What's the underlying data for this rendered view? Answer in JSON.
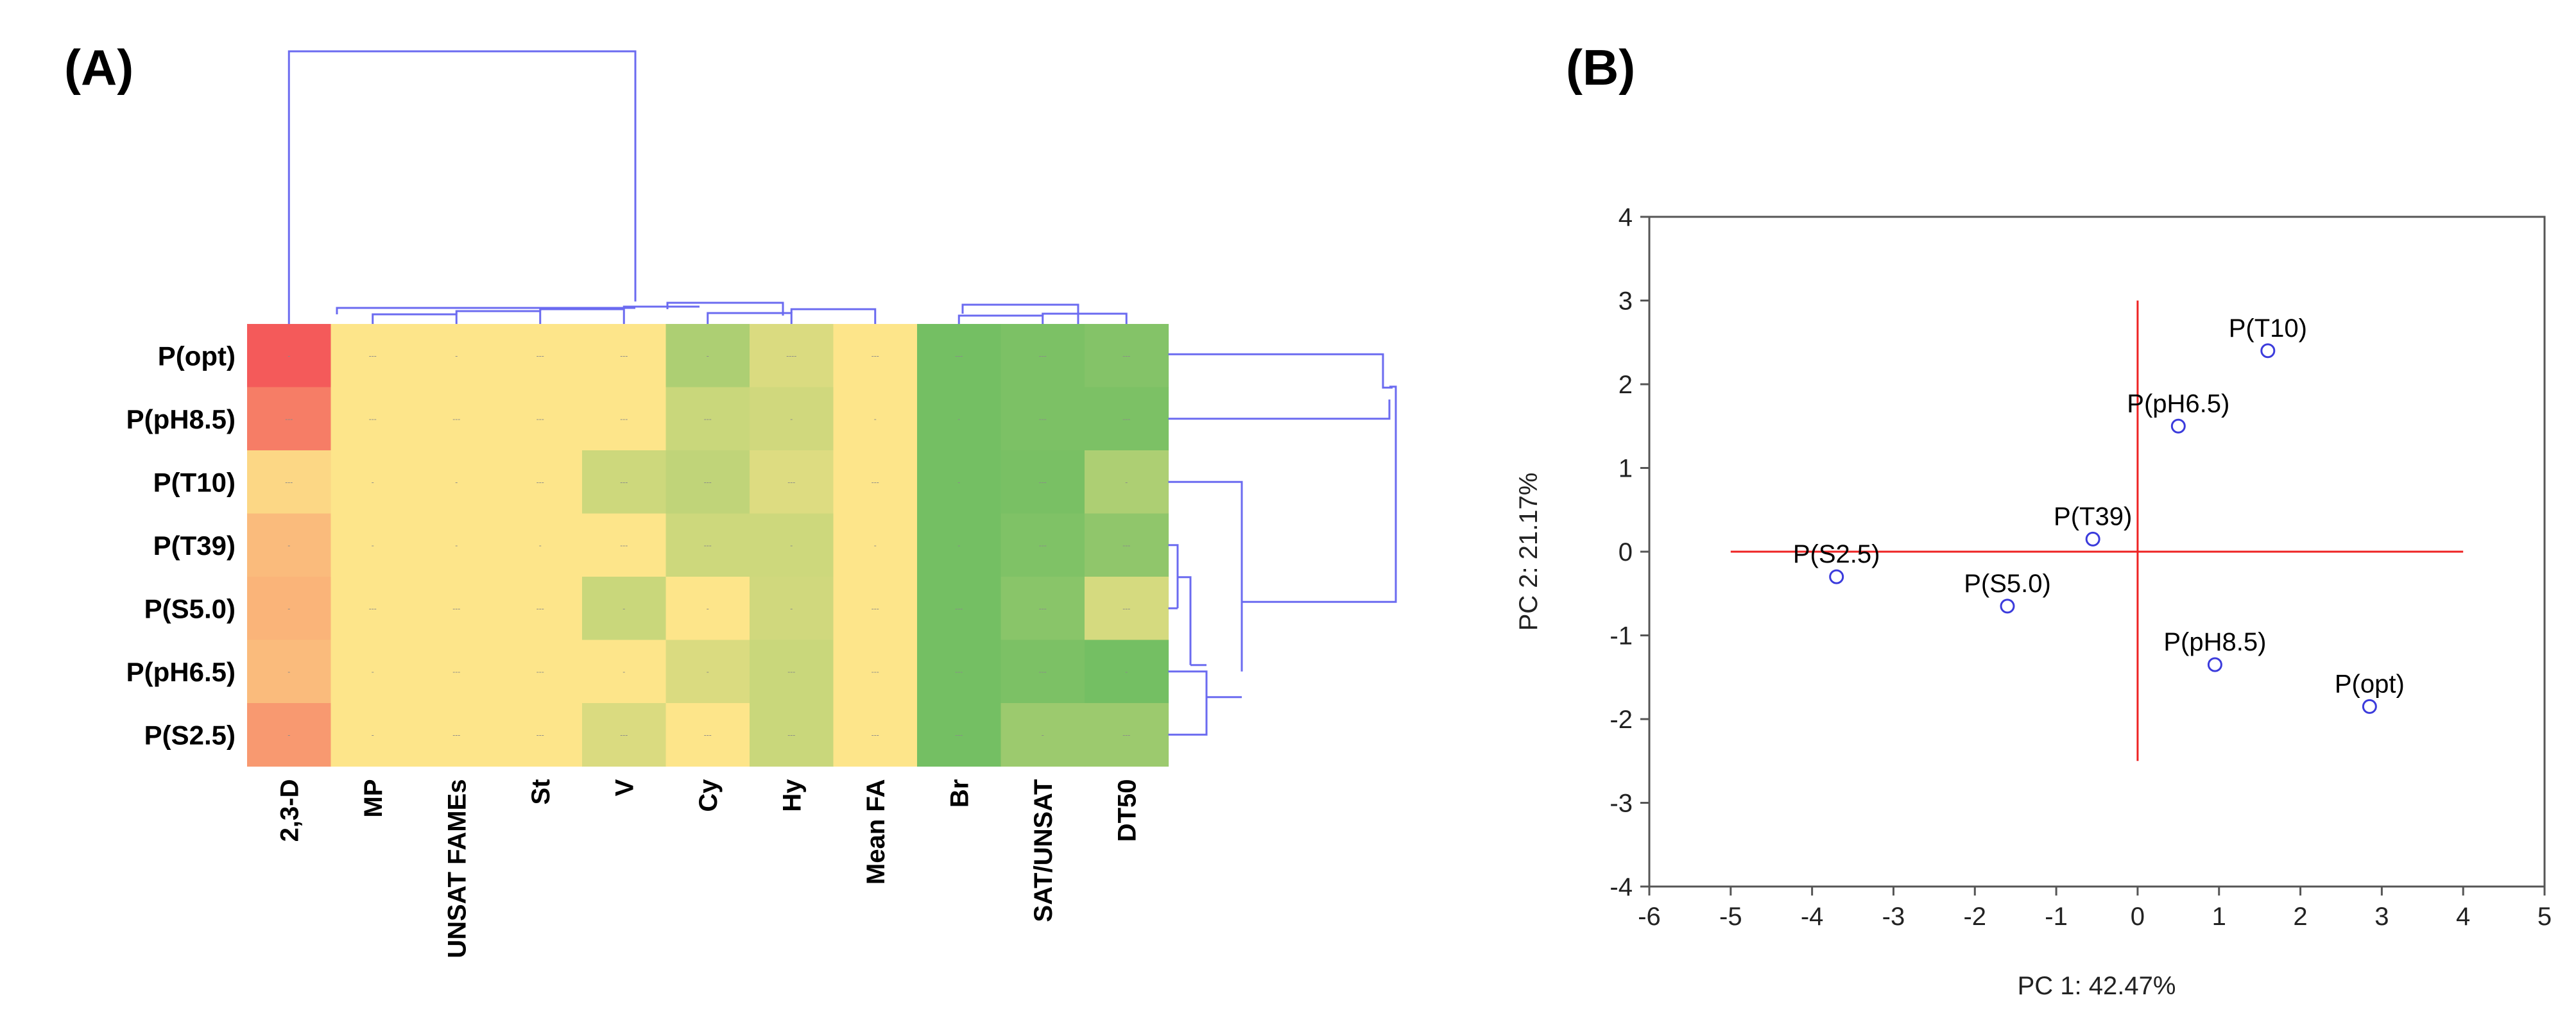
{
  "chart_data": [
    {
      "type": "heatmap",
      "panel_label": "(A)",
      "rows": [
        "P(opt)",
        "P(pH8.5)",
        "P(T10)",
        "P(T39)",
        "P(S5.0)",
        "P(pH6.5)",
        "P(S2.5)"
      ],
      "columns": [
        "2,3-D",
        "MP",
        "UNSAT FAMEs",
        "St",
        "V",
        "Cy",
        "Hy",
        "Mean FA",
        "Br",
        "SAT/UNSAT",
        "DT50"
      ],
      "color_scale": {
        "low": "#5cb85c",
        "mid": "#fde58a",
        "high": "#f45a5a",
        "range": [
          -1,
          1
        ]
      },
      "values": [
        [
          1.0,
          0.0,
          0.0,
          0.0,
          0.0,
          -0.5,
          -0.22,
          0.0,
          -0.85,
          -0.8,
          -0.75
        ],
        [
          0.75,
          0.0,
          0.0,
          0.0,
          0.0,
          -0.32,
          -0.28,
          0.0,
          -0.85,
          -0.8,
          -0.8
        ],
        [
          0.1,
          0.0,
          0.0,
          0.0,
          -0.3,
          -0.38,
          -0.2,
          0.0,
          -0.85,
          -0.82,
          -0.5
        ],
        [
          0.3,
          0.0,
          0.0,
          0.0,
          0.0,
          -0.3,
          -0.3,
          0.0,
          -0.85,
          -0.78,
          -0.68
        ],
        [
          0.35,
          0.0,
          0.0,
          0.0,
          -0.32,
          0.0,
          -0.28,
          0.0,
          -0.85,
          -0.72,
          -0.25
        ],
        [
          0.3,
          0.0,
          0.0,
          0.0,
          0.0,
          -0.22,
          -0.32,
          0.0,
          -0.85,
          -0.8,
          -0.85
        ],
        [
          0.55,
          0.0,
          0.0,
          0.0,
          -0.22,
          0.0,
          -0.32,
          0.0,
          -0.85,
          -0.6,
          -0.6
        ]
      ],
      "cell_annotations": [
        [
          "-",
          "---",
          "-",
          "---",
          "---",
          "-",
          "----",
          "---",
          "---",
          "---",
          "---"
        ],
        [
          "---",
          "---",
          "---",
          "---",
          "---",
          "---",
          "-",
          "-",
          "-",
          "---",
          "---"
        ],
        [
          "---",
          "-",
          "-",
          "---",
          "---",
          "---",
          "---",
          "---",
          "-",
          "---",
          "-"
        ],
        [
          "-",
          "-",
          "-",
          "-",
          "---",
          "---",
          "-",
          "-",
          "-",
          "---",
          "---"
        ],
        [
          "-",
          "---",
          "---",
          "---",
          "-",
          "-",
          "-",
          "---",
          "---",
          "---",
          "---"
        ],
        [
          "-",
          "-",
          "---",
          "---",
          "-",
          "-",
          "---",
          "---",
          "---",
          "---",
          "-"
        ],
        [
          "-",
          "-",
          "---",
          "---",
          "---",
          "---",
          "---",
          "---",
          "---",
          "-",
          "---"
        ]
      ],
      "column_dendrogram": "hierarchical clustering of columns (blue lines)",
      "row_dendrogram": "hierarchical clustering of rows (blue lines)"
    },
    {
      "type": "scatter",
      "panel_label": "(B)",
      "xlabel": "PC 1: 42.47%",
      "ylabel": "PC 2: 21.17%",
      "xlim": [
        -6,
        5
      ],
      "ylim": [
        -4,
        4
      ],
      "xticks": [
        -6,
        -5,
        -4,
        -3,
        -2,
        -1,
        0,
        1,
        2,
        3,
        4,
        5
      ],
      "yticks": [
        -4,
        -3,
        -2,
        -1,
        0,
        1,
        2,
        3,
        4
      ],
      "points": [
        {
          "label": "P(T10)",
          "x": 1.6,
          "y": 2.4
        },
        {
          "label": "P(pH6.5)",
          "x": 0.5,
          "y": 1.5
        },
        {
          "label": "P(T39)",
          "x": -0.55,
          "y": 0.15
        },
        {
          "label": "P(S2.5)",
          "x": -3.7,
          "y": -0.3
        },
        {
          "label": "P(S5.0)",
          "x": -1.6,
          "y": -0.65
        },
        {
          "label": "P(pH8.5)",
          "x": 0.95,
          "y": -1.35
        },
        {
          "label": "P(opt)",
          "x": 2.85,
          "y": -1.85
        }
      ],
      "reference_lines": {
        "horizontal": {
          "y": 0,
          "x_from": -5,
          "x_to": 4
        },
        "vertical": {
          "x": 0,
          "y_from": -2.5,
          "y_to": 3
        }
      },
      "point_color": "#3b3bdc",
      "reference_line_color": "#ee2222"
    }
  ]
}
